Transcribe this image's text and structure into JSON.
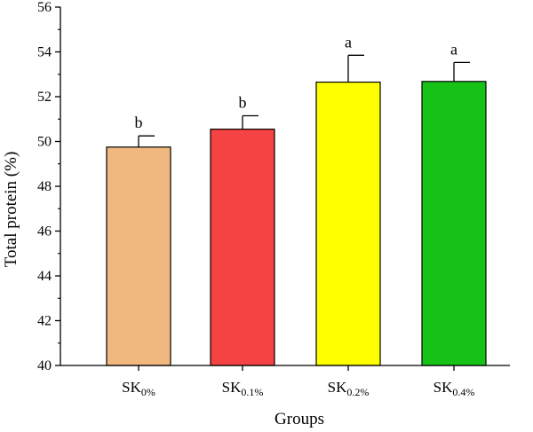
{
  "chart_data": {
    "type": "bar",
    "title": "",
    "xlabel": "Groups",
    "ylabel": "Total protein (%)",
    "ylim": [
      40,
      56
    ],
    "yticks": [
      40,
      42,
      44,
      46,
      48,
      50,
      52,
      54,
      56
    ],
    "grid": false,
    "categories": [
      {
        "main": "SK",
        "sub": "0%"
      },
      {
        "main": "SK",
        "sub": "0.1%"
      },
      {
        "main": "SK",
        "sub": "0.2%"
      },
      {
        "main": "SK",
        "sub": "0.4%"
      }
    ],
    "values": [
      49.75,
      50.55,
      52.65,
      52.68
    ],
    "errors": [
      0.5,
      0.6,
      1.2,
      0.85
    ],
    "significance": [
      "b",
      "b",
      "a",
      "a"
    ],
    "colors": [
      "#F0B77E",
      "#F54242",
      "#FFFF00",
      "#17C217"
    ]
  }
}
